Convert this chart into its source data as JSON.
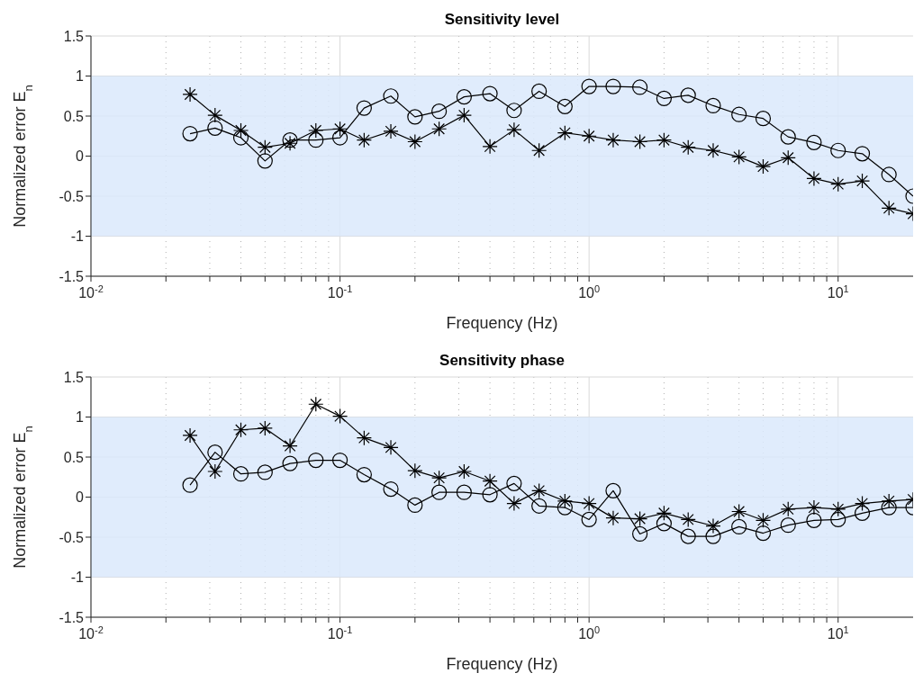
{
  "chart_data": [
    {
      "type": "line",
      "title": "Sensitivity level",
      "xlabel": "Frequency (Hz)",
      "ylabel": "Normalized error E$_{n}$",
      "log": "x",
      "x": [
        0.025,
        0.0315,
        0.04,
        0.05,
        0.063,
        0.08,
        0.1,
        0.125,
        0.16,
        0.2,
        0.25,
        0.315,
        0.4,
        0.5,
        0.63,
        0.8,
        1,
        1.25,
        1.6,
        2,
        2.5,
        3.15,
        4,
        5,
        6.3,
        8,
        10,
        12.5,
        16,
        20
      ],
      "series": [
        {
          "color": "#000000",
          "marker": "circle",
          "values": [
            0.28,
            0.35,
            0.23,
            -0.06,
            0.2,
            0.2,
            0.23,
            0.6,
            0.75,
            0.49,
            0.56,
            0.74,
            0.78,
            0.57,
            0.81,
            0.62,
            0.87,
            0.87,
            0.86,
            0.72,
            0.76,
            0.63,
            0.52,
            0.47,
            0.24,
            0.17,
            0.07,
            0.03,
            -0.23,
            -0.5
          ]
        },
        {
          "color": "#000000",
          "marker": "cross",
          "values": [
            0.77,
            0.51,
            0.32,
            0.11,
            0.16,
            0.32,
            0.34,
            0.2,
            0.31,
            0.18,
            0.34,
            0.51,
            0.12,
            0.33,
            0.07,
            0.29,
            0.25,
            0.2,
            0.18,
            0.2,
            0.11,
            0.07,
            -0.01,
            -0.13,
            -0.02,
            -0.28,
            -0.35,
            -0.31,
            -0.65,
            -0.72
          ]
        }
      ],
      "xlim": [
        0.01,
        20
      ],
      "xticks": [
        {
          "value": 0.01,
          "label": "10$^{-2}$"
        },
        {
          "value": 0.02,
          "label": null
        },
        {
          "value": 0.03,
          "label": null
        },
        {
          "value": 0.04,
          "label": null
        },
        {
          "value": 0.05,
          "label": null
        },
        {
          "value": 0.06,
          "label": null
        },
        {
          "value": 0.07,
          "label": null
        },
        {
          "value": 0.08,
          "label": null
        },
        {
          "value": 0.09,
          "label": null
        },
        {
          "value": 0.1,
          "label": "10$^{-1}$"
        },
        {
          "value": 0.2,
          "label": null
        },
        {
          "value": 0.3,
          "label": null
        },
        {
          "value": 0.4,
          "label": null
        },
        {
          "value": 0.5,
          "label": null
        },
        {
          "value": 0.6,
          "label": null
        },
        {
          "value": 0.7,
          "label": null
        },
        {
          "value": 0.8,
          "label": null
        },
        {
          "value": 0.9,
          "label": null
        },
        {
          "value": 1,
          "label": "10$^{0}$"
        },
        {
          "value": 2,
          "label": null
        },
        {
          "value": 3,
          "label": null
        },
        {
          "value": 4,
          "label": null
        },
        {
          "value": 5,
          "label": null
        },
        {
          "value": 6,
          "label": null
        },
        {
          "value": 7,
          "label": null
        },
        {
          "value": 8,
          "label": null
        },
        {
          "value": 9,
          "label": null
        },
        {
          "value": 10,
          "label": "10$^{1}$"
        }
      ],
      "ylim": [
        -1.5,
        1.5
      ],
      "yticks": [
        -1.5,
        -1,
        -0.5,
        0,
        0.5,
        1,
        1.5
      ],
      "bands": [
        {
          "axis": "y",
          "from": -1,
          "to": 1,
          "color": "#dbe9fc"
        }
      ],
      "grid": true
    },
    {
      "type": "line",
      "title": "Sensitivity phase",
      "xlabel": "Frequency (Hz)",
      "ylabel": "Normalized error E$_{n}$",
      "log": "x",
      "x": [
        0.025,
        0.0315,
        0.04,
        0.05,
        0.063,
        0.08,
        0.1,
        0.125,
        0.16,
        0.2,
        0.25,
        0.315,
        0.4,
        0.5,
        0.63,
        0.8,
        1,
        1.25,
        1.6,
        2,
        2.5,
        3.15,
        4,
        5,
        6.3,
        8,
        10,
        12.5,
        16,
        20
      ],
      "series": [
        {
          "color": "#000000",
          "marker": "circle",
          "values": [
            0.15,
            0.56,
            0.29,
            0.31,
            0.42,
            0.46,
            0.46,
            0.28,
            0.1,
            -0.1,
            0.06,
            0.06,
            0.03,
            0.17,
            -0.11,
            -0.13,
            -0.28,
            0.08,
            -0.46,
            -0.33,
            -0.49,
            -0.49,
            -0.37,
            -0.45,
            -0.35,
            -0.29,
            -0.28,
            -0.2,
            -0.13,
            -0.13
          ]
        },
        {
          "color": "#000000",
          "marker": "cross",
          "values": [
            0.77,
            0.32,
            0.84,
            0.86,
            0.64,
            1.16,
            1.01,
            0.74,
            0.62,
            0.33,
            0.24,
            0.32,
            0.2,
            -0.08,
            0.08,
            -0.05,
            -0.08,
            -0.26,
            -0.27,
            -0.2,
            -0.28,
            -0.36,
            -0.18,
            -0.29,
            -0.15,
            -0.13,
            -0.15,
            -0.08,
            -0.05,
            -0.03
          ]
        }
      ],
      "xlim": [
        0.01,
        20
      ],
      "xticks": [
        {
          "value": 0.01,
          "label": "10$^{-2}$"
        },
        {
          "value": 0.02,
          "label": null
        },
        {
          "value": 0.03,
          "label": null
        },
        {
          "value": 0.04,
          "label": null
        },
        {
          "value": 0.05,
          "label": null
        },
        {
          "value": 0.06,
          "label": null
        },
        {
          "value": 0.07,
          "label": null
        },
        {
          "value": 0.08,
          "label": null
        },
        {
          "value": 0.09,
          "label": null
        },
        {
          "value": 0.1,
          "label": "10$^{-1}$"
        },
        {
          "value": 0.2,
          "label": null
        },
        {
          "value": 0.3,
          "label": null
        },
        {
          "value": 0.4,
          "label": null
        },
        {
          "value": 0.5,
          "label": null
        },
        {
          "value": 0.6,
          "label": null
        },
        {
          "value": 0.7,
          "label": null
        },
        {
          "value": 0.8,
          "label": null
        },
        {
          "value": 0.9,
          "label": null
        },
        {
          "value": 1,
          "label": "10$^{0}$"
        },
        {
          "value": 2,
          "label": null
        },
        {
          "value": 3,
          "label": null
        },
        {
          "value": 4,
          "label": null
        },
        {
          "value": 5,
          "label": null
        },
        {
          "value": 6,
          "label": null
        },
        {
          "value": 7,
          "label": null
        },
        {
          "value": 8,
          "label": null
        },
        {
          "value": 9,
          "label": null
        },
        {
          "value": 10,
          "label": "10$^{1}$"
        }
      ],
      "ylim": [
        -1.5,
        1.5
      ],
      "yticks": [
        -1.5,
        -1,
        -0.5,
        0,
        0.5,
        1,
        1.5
      ],
      "bands": [
        {
          "axis": "y",
          "from": -1,
          "to": 1,
          "color": "#dbe9fc"
        }
      ],
      "grid": true
    }
  ]
}
